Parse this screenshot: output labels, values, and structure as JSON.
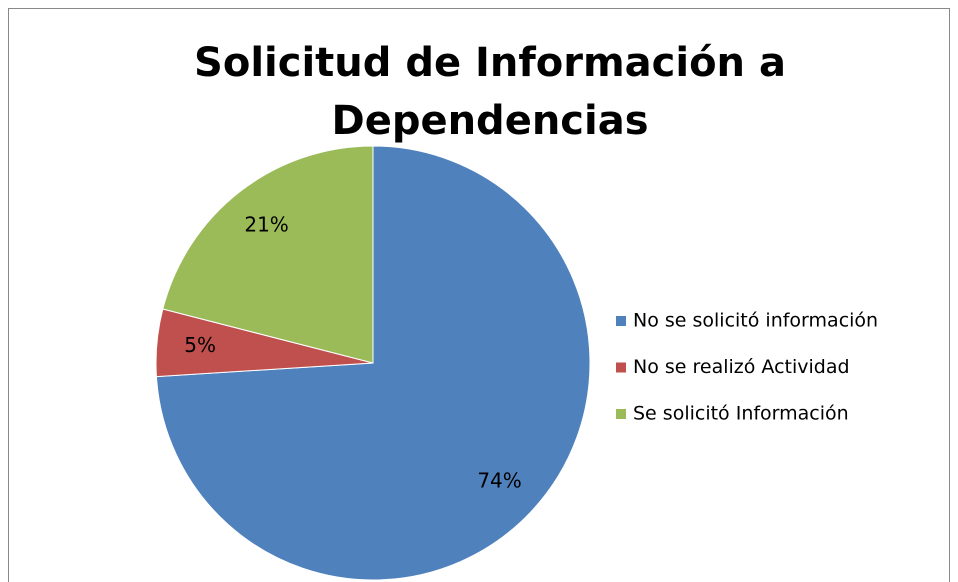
{
  "chart_data": {
    "type": "pie",
    "title": "Solicitud de Información a Dependencias",
    "categories": [
      "No se solicitó información",
      "No se realizó Actividad",
      "Se solicitó Información"
    ],
    "values": [
      74,
      5,
      21
    ],
    "value_labels": [
      "74%",
      "5%",
      "21%"
    ],
    "colors": [
      "#4f81bd",
      "#c0504d",
      "#9bbb59"
    ],
    "legend": "right"
  }
}
